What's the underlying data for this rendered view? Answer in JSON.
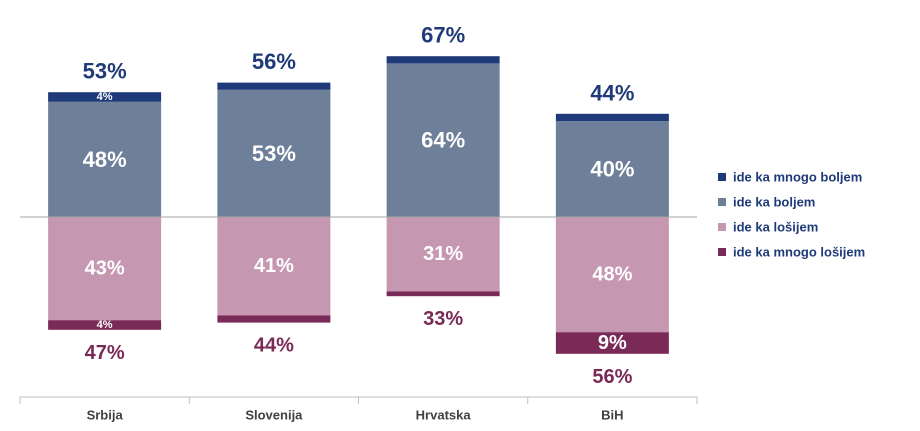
{
  "chart_data": {
    "type": "bar",
    "stacked": true,
    "diverging": true,
    "categories": [
      "Srbija",
      "Slovenija",
      "Hrvatska",
      "BiH"
    ],
    "series": [
      {
        "name": "ide ka mnogo boljem",
        "values": [
          4,
          3,
          3,
          3
        ],
        "color": "#1f3a78",
        "side": "positive",
        "value_labels": [
          "4%",
          "",
          "",
          ""
        ]
      },
      {
        "name": "ide ka boljem",
        "values": [
          48,
          53,
          64,
          40
        ],
        "color": "#6e7f99",
        "side": "positive",
        "value_labels": [
          "48%",
          "53%",
          "64%",
          "40%"
        ]
      },
      {
        "name": "ide ka lošijem",
        "values": [
          43,
          41,
          31,
          48
        ],
        "color": "#c597b0",
        "side": "negative",
        "value_labels": [
          "43%",
          "41%",
          "31%",
          "48%"
        ]
      },
      {
        "name": "ide ka mnogo lošijem",
        "values": [
          4,
          3,
          2,
          9
        ],
        "color": "#7a2a57",
        "side": "negative",
        "value_labels": [
          "4%",
          "",
          "",
          "9%"
        ]
      }
    ],
    "total_positive_labels": [
      "53%",
      "56%",
      "67%",
      "44%"
    ],
    "total_negative_labels": [
      "47%",
      "44%",
      "33%",
      "56%"
    ],
    "legend_position": "right",
    "grid": false
  }
}
